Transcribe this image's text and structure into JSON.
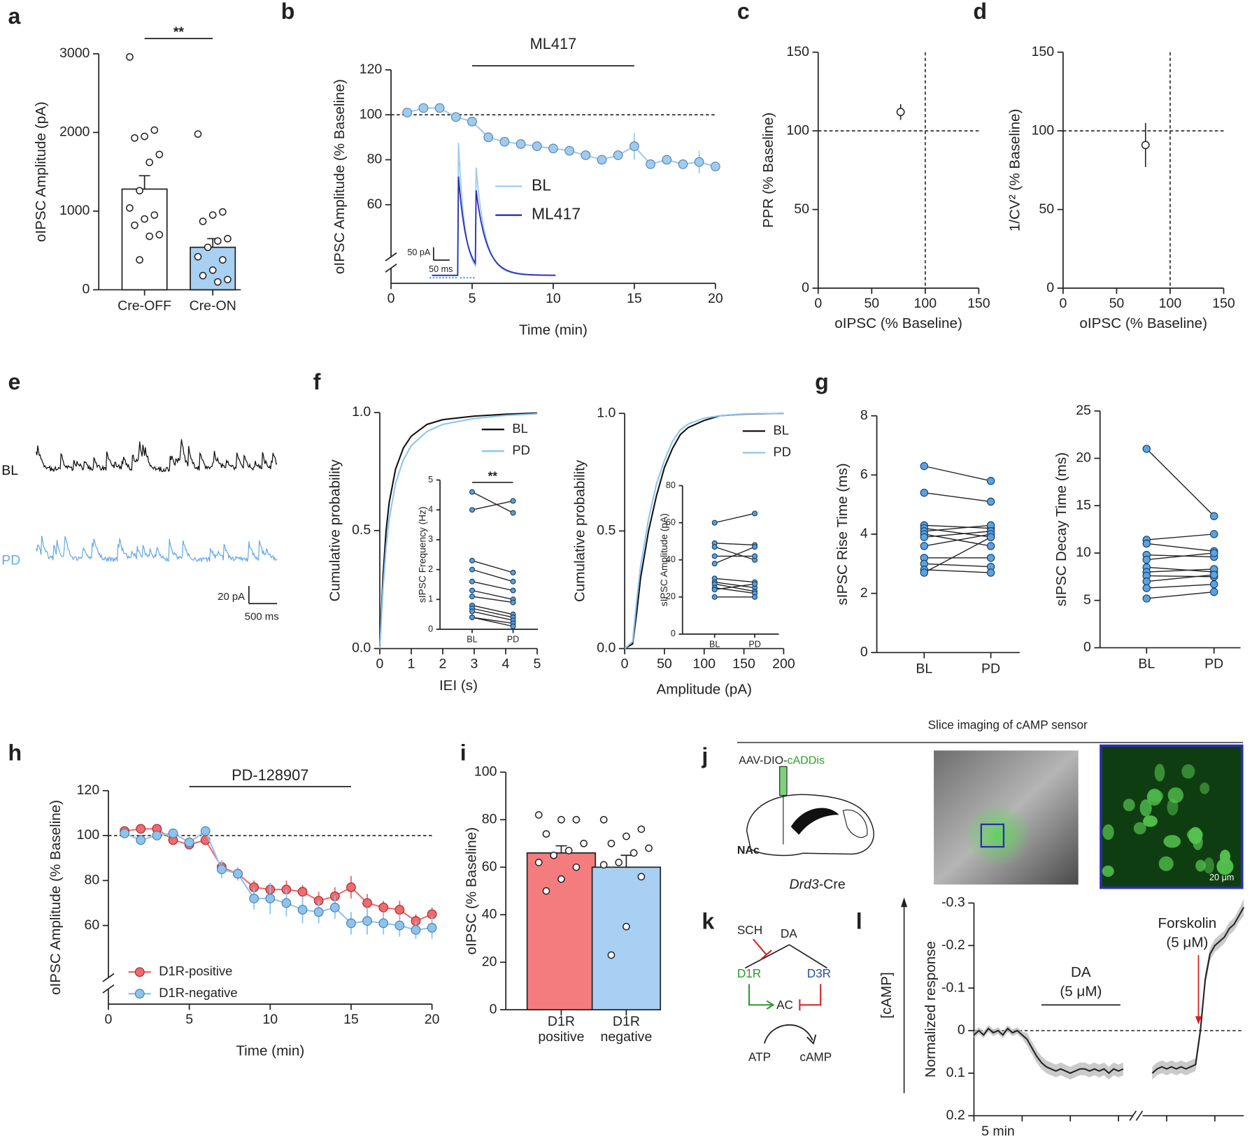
{
  "chart_data": [
    {
      "panel": "a",
      "type": "bar",
      "ylabel": "oIPSC Amplitude (pA)",
      "categories": [
        "Cre-OFF",
        "Cre-ON"
      ],
      "values": [
        1280,
        540
      ],
      "errors": [
        170,
        110
      ],
      "colors": [
        "#ffffff",
        "#a8d0f2"
      ],
      "points": [
        [
          2960,
          2030,
          1950,
          1930,
          1720,
          1620,
          1260,
          1040,
          950,
          900,
          820,
          700,
          680,
          380
        ],
        [
          1980,
          990,
          950,
          870,
          650,
          620,
          540,
          420,
          380,
          250,
          180,
          130,
          100
        ]
      ],
      "ylim": [
        0,
        3000
      ],
      "yticks": [
        0,
        1000,
        2000,
        3000
      ],
      "significance": "**"
    },
    {
      "panel": "b",
      "type": "line",
      "xlabel": "Time (min)",
      "ylabel": "oIPSC Amplitude (% Baseline)",
      "x": [
        1,
        2,
        3,
        4,
        5,
        6,
        7,
        8,
        9,
        10,
        11,
        12,
        13,
        14,
        15,
        16,
        17,
        18,
        19,
        20
      ],
      "series": [
        {
          "color": "#9ecbef",
          "values": [
            101,
            103,
            103,
            99,
            97,
            90,
            88,
            87,
            86,
            85,
            84,
            82,
            80,
            82,
            86,
            78,
            80,
            78,
            79,
            77
          ],
          "errors": [
            1,
            1,
            2,
            1,
            1,
            2,
            2,
            2,
            2,
            2,
            2,
            2,
            2,
            2,
            6,
            2,
            2,
            2,
            5,
            2
          ]
        }
      ],
      "xlim": [
        0,
        20
      ],
      "xticks": [
        0,
        5,
        10,
        15,
        20
      ],
      "ylim": [
        25,
        120
      ],
      "yticks": [
        60,
        80,
        100,
        120
      ],
      "y_break": true,
      "ref_y": 100,
      "treatment": {
        "label": "ML417",
        "span": [
          5,
          15
        ]
      },
      "inset": {
        "series": [
          {
            "name": "BL",
            "color": "#9ecbef"
          },
          {
            "name": "ML417",
            "color": "#2b2fb0"
          }
        ],
        "scale_y": "50 pA",
        "scale_x": "50 ms"
      }
    },
    {
      "panel": "c",
      "type": "scatter",
      "xlabel": "oIPSC (% Baseline)",
      "ylabel": "PPR (% Baseline)",
      "x": [
        77
      ],
      "values": [
        112
      ],
      "errors": [
        5
      ],
      "x_errors": [
        2
      ],
      "xlim": [
        0,
        150
      ],
      "ylim": [
        0,
        150
      ],
      "xticks": [
        0,
        50,
        100,
        150
      ],
      "yticks": [
        0,
        50,
        100,
        150
      ],
      "ref_x": 100,
      "ref_y": 100
    },
    {
      "panel": "d",
      "type": "scatter",
      "xlabel": "oIPSC (% Baseline)",
      "ylabel": "1/CV² (% Baseline)",
      "x": [
        77
      ],
      "values": [
        91
      ],
      "errors": [
        14
      ],
      "x_errors": [
        1
      ],
      "xlim": [
        0,
        150
      ],
      "ylim": [
        0,
        150
      ],
      "xticks": [
        0,
        50,
        100,
        150
      ],
      "yticks": [
        0,
        50,
        100,
        150
      ],
      "ref_x": 100,
      "ref_y": 100
    },
    {
      "panel": "e",
      "type": "trace",
      "traces": [
        {
          "name": "BL",
          "color": "#111111"
        },
        {
          "name": "PD",
          "color": "#6aaae8"
        }
      ],
      "scale_y": "20 pA",
      "scale_x": "500 ms"
    },
    {
      "panel": "f",
      "type": "line",
      "markers": false,
      "xlabel": "IEI (s)",
      "ylabel": "Cumulative probability",
      "x": [
        0,
        0.1,
        0.2,
        0.3,
        0.5,
        0.75,
        1,
        1.5,
        2,
        3,
        4,
        5
      ],
      "series": [
        {
          "name": "BL",
          "color": "#111111",
          "values": [
            0,
            0.3,
            0.5,
            0.62,
            0.76,
            0.85,
            0.9,
            0.95,
            0.97,
            0.985,
            0.993,
            0.998
          ]
        },
        {
          "name": "PD",
          "color": "#8ec3ee",
          "values": [
            0,
            0.25,
            0.43,
            0.55,
            0.7,
            0.8,
            0.86,
            0.92,
            0.95,
            0.975,
            0.988,
            0.995
          ]
        }
      ],
      "xlim": [
        0,
        5
      ],
      "xticks": [
        0,
        1,
        2,
        3,
        4,
        5
      ],
      "ylim": [
        0,
        1
      ],
      "yticks": [
        {
          "value": 0,
          "label": "0.0"
        },
        0.5,
        {
          "value": 1,
          "label": "1.0"
        }
      ],
      "legend": "upper right"
    },
    {
      "type": "paired",
      "ylabel": "sIPSC Frequency (Hz)",
      "categories": [
        "BL",
        "PD"
      ],
      "pairs": [
        [
          4.6,
          3.9
        ],
        [
          4.0,
          4.3
        ],
        [
          2.3,
          1.9
        ],
        [
          2.0,
          1.6
        ],
        [
          1.6,
          1.3
        ],
        [
          1.3,
          1.0
        ],
        [
          1.1,
          0.9
        ],
        [
          0.8,
          0.5
        ],
        [
          0.7,
          0.4
        ],
        [
          0.6,
          0.3
        ],
        [
          0.4,
          0.2
        ],
        [
          0.4,
          0.1
        ]
      ],
      "ylim": [
        0,
        5
      ],
      "yticks": [
        0,
        1,
        2,
        3,
        4,
        5
      ],
      "significance": "**",
      "color": "#5a9fd8"
    },
    {
      "type": "line",
      "markers": false,
      "xlabel": "Amplitude (pA)",
      "ylabel": "Cumulative probability",
      "x": [
        0,
        10,
        15,
        20,
        30,
        40,
        50,
        60,
        70,
        80,
        100,
        120,
        150,
        200
      ],
      "series": [
        {
          "name": "BL",
          "color": "#111111",
          "values": [
            0,
            0.02,
            0.15,
            0.3,
            0.5,
            0.65,
            0.77,
            0.85,
            0.91,
            0.94,
            0.97,
            0.99,
            0.997,
            1
          ]
        },
        {
          "name": "PD",
          "color": "#8ec3ee",
          "values": [
            0,
            0.03,
            0.2,
            0.35,
            0.55,
            0.7,
            0.8,
            0.88,
            0.93,
            0.955,
            0.98,
            0.99,
            0.998,
            1
          ]
        }
      ],
      "xlim": [
        0,
        200
      ],
      "xticks": [
        0,
        50,
        100,
        150,
        200
      ],
      "ylim": [
        0,
        1
      ],
      "yticks": [
        {
          "value": 0,
          "label": "0.0"
        },
        0.5,
        {
          "value": 1,
          "label": "1.0"
        }
      ],
      "legend": "upper right"
    },
    {
      "type": "paired",
      "ylabel": "sIPSC Amplitude (pA)",
      "categories": [
        "BL",
        "PD"
      ],
      "pairs": [
        [
          60,
          65
        ],
        [
          49,
          48
        ],
        [
          47,
          40
        ],
        [
          42,
          42
        ],
        [
          38,
          47
        ],
        [
          30,
          28
        ],
        [
          28,
          25
        ],
        [
          27,
          23
        ],
        [
          25,
          22
        ],
        [
          24,
          27
        ],
        [
          20,
          20
        ]
      ],
      "ylim": [
        0,
        80
      ],
      "yticks": [
        0,
        20,
        40,
        60,
        80
      ],
      "color": "#5a9fd8"
    },
    {
      "panel": "g",
      "type": "paired",
      "ylabel": "sIPSC Rise Time (ms)",
      "categories": [
        "BL",
        "PD"
      ],
      "pairs": [
        [
          6.3,
          5.8
        ],
        [
          5.4,
          5.1
        ],
        [
          4.3,
          4.2
        ],
        [
          4.2,
          3.9
        ],
        [
          4.1,
          4.3
        ],
        [
          4.0,
          3.6
        ],
        [
          3.9,
          4.1
        ],
        [
          3.6,
          4.0
        ],
        [
          3.2,
          3.2
        ],
        [
          3.0,
          2.9
        ],
        [
          2.8,
          2.7
        ],
        [
          2.7,
          3.9
        ]
      ],
      "ylim": [
        0,
        8
      ],
      "yticks": [
        0,
        2,
        4,
        6,
        8
      ],
      "color": "#5aa3e0"
    },
    {
      "type": "paired",
      "ylabel": "sIPSC Decay Time (ms)",
      "categories": [
        "BL",
        "PD"
      ],
      "pairs": [
        [
          21,
          13.9
        ],
        [
          11.4,
          12
        ],
        [
          11,
          10.2
        ],
        [
          9.8,
          9.6
        ],
        [
          9.3,
          10
        ],
        [
          8.5,
          8
        ],
        [
          8,
          8.3
        ],
        [
          7.6,
          7.5
        ],
        [
          7,
          7.7
        ],
        [
          6.3,
          6.7
        ],
        [
          5.2,
          5.9
        ]
      ],
      "ylim": [
        0,
        25
      ],
      "yticks": [
        0,
        5,
        10,
        15,
        20,
        25
      ],
      "color": "#5aa3e0"
    },
    {
      "panel": "h",
      "type": "line",
      "xlabel": "Time (min)",
      "ylabel": "oIPSC Amplitude (% Baseline)",
      "x": [
        1,
        2,
        3,
        4,
        5,
        6,
        7,
        8,
        9,
        10,
        11,
        12,
        13,
        14,
        15,
        16,
        17,
        18,
        19,
        20
      ],
      "series": [
        {
          "name": "D1R-positive",
          "color": "#ee6b6e",
          "values": [
            102,
            103,
            103,
            98,
            96,
            98,
            86,
            83,
            77,
            76,
            76,
            75,
            71,
            73,
            77,
            70,
            68,
            67,
            62,
            65
          ],
          "errors": [
            1,
            1,
            2,
            2,
            2,
            2,
            3,
            2,
            3,
            3,
            4,
            3,
            4,
            4,
            5,
            4,
            3,
            4,
            3,
            3
          ]
        },
        {
          "name": "D1R-negative",
          "color": "#8ec3ee",
          "values": [
            101,
            98,
            100,
            101,
            97,
            102,
            85,
            83,
            72,
            72,
            70,
            67,
            66,
            68,
            61,
            62,
            61,
            60,
            58,
            59
          ],
          "errors": [
            1,
            2,
            2,
            2,
            2,
            2,
            4,
            3,
            5,
            7,
            6,
            6,
            5,
            5,
            5,
            6,
            5,
            5,
            4,
            5
          ]
        }
      ],
      "xlim": [
        0,
        20
      ],
      "xticks": [
        0,
        5,
        10,
        15,
        20
      ],
      "ylim": [
        25,
        120
      ],
      "yticks": [
        60,
        80,
        100,
        120
      ],
      "y_break": true,
      "ref_y": 100,
      "treatment": {
        "label": "PD-128907",
        "span": [
          5,
          15
        ]
      },
      "legend": "lower left"
    },
    {
      "panel": "i",
      "type": "bar",
      "ylabel": "oIPSC (% Baseline)",
      "categories": [
        "D1R positive",
        "D1R negative"
      ],
      "values": [
        66,
        60
      ],
      "errors": [
        3,
        5
      ],
      "colors": [
        "#f47c7f",
        "#a8d0f2"
      ],
      "points": [
        [
          82,
          80,
          80,
          74,
          70,
          67,
          65,
          62,
          60,
          55,
          50
        ],
        [
          80,
          76,
          73,
          70,
          68,
          66,
          62,
          61,
          56,
          35,
          23
        ]
      ],
      "ylim": [
        0,
        100
      ],
      "yticks": [
        0,
        20,
        40,
        60,
        80,
        100
      ]
    },
    {
      "panel": "l",
      "type": "line",
      "markers": false,
      "band": true,
      "ylabel": "Normalized  response",
      "y_arrow_label": "[cAMP]",
      "x": [
        0,
        0.5,
        1,
        1.5,
        2,
        2.5,
        3,
        3.5,
        4,
        4.5,
        5,
        5.5,
        6,
        6.5,
        7,
        7.5,
        8,
        8.5,
        9,
        9.5,
        10,
        10.5,
        11,
        11.5,
        12,
        12.5,
        13,
        13.5,
        14,
        14.5,
        15,
        15.5,
        17,
        18.5,
        19,
        19.5,
        20,
        20.5,
        21,
        21.5,
        22,
        22.5,
        23,
        23.5,
        24,
        24.5,
        25,
        25.5,
        26,
        26.5,
        27,
        27.5,
        28
      ],
      "series": [
        {
          "color": "#222222",
          "values": [
            0.01,
            0,
            0.01,
            -0.005,
            0.005,
            0,
            0.01,
            -0.005,
            0.005,
            0,
            0.01,
            0.02,
            0.04,
            0.06,
            0.075,
            0.085,
            0.09,
            0.095,
            0.09,
            0.095,
            0.1,
            0.095,
            0.09,
            0.09,
            0.095,
            0.09,
            0.095,
            0.09,
            0.1,
            0.09,
            0.095,
            0.09,
            null,
            0.1,
            0.09,
            0.085,
            0.09,
            0.085,
            0.09,
            0.085,
            0.09,
            0.085,
            0.08,
            0,
            -0.12,
            -0.18,
            -0.2,
            -0.21,
            -0.22,
            -0.24,
            -0.25,
            -0.27,
            -0.29
          ],
          "errors": [
            0.008,
            0.008,
            0.008,
            0.008,
            0.008,
            0.008,
            0.008,
            0.008,
            0.008,
            0.008,
            0.008,
            0.015,
            0.015,
            0.015,
            0.015,
            0.015,
            0.015,
            0.015,
            0.015,
            0.015,
            0.015,
            0.015,
            0.015,
            0.015,
            0.015,
            0.015,
            0.015,
            0.015,
            0.015,
            0.015,
            0.015,
            0.015,
            null,
            0.015,
            0.015,
            0.015,
            0.015,
            0.015,
            0.015,
            0.015,
            0.015,
            0.015,
            0.015,
            0.015,
            0.015,
            0.015,
            0.015,
            0.015,
            0.015,
            0.015,
            0.015,
            0.015,
            0.02
          ]
        }
      ],
      "xlim": [
        0,
        28
      ],
      "ylim": [
        -0.3,
        0.2
      ],
      "y_inverted": true,
      "yticks": [
        -0.3,
        -0.2,
        -0.1,
        0,
        0.1,
        0.2
      ],
      "ref_y": 0,
      "x_break": true,
      "scale_bar": {
        "label": "5 min",
        "length": 5
      },
      "annotations": [
        {
          "label": "DA",
          "sublabel": "(5 μM)",
          "span": [
            7,
            15.2
          ]
        },
        {
          "label": "Forskolin",
          "sublabel": "(5 μM)",
          "at": 23.3
        }
      ]
    }
  ],
  "panel_j": {
    "panel": "j",
    "title": "Slice imaging of cAMP sensor",
    "vector_prefix": "AAV-DIO-",
    "vector_sensor": "cADDis",
    "region": "NAc",
    "line_genotype": "Drd3",
    "line_suffix": "-Cre",
    "scale": "20 μm"
  },
  "panel_k": {
    "panel": "k",
    "antagonist": "SCH",
    "agonist": "DA",
    "receptor_1": "D1R",
    "receptor_2": "D3R",
    "enzyme": "AC",
    "substrate": "ATP",
    "product": "cAMP"
  }
}
